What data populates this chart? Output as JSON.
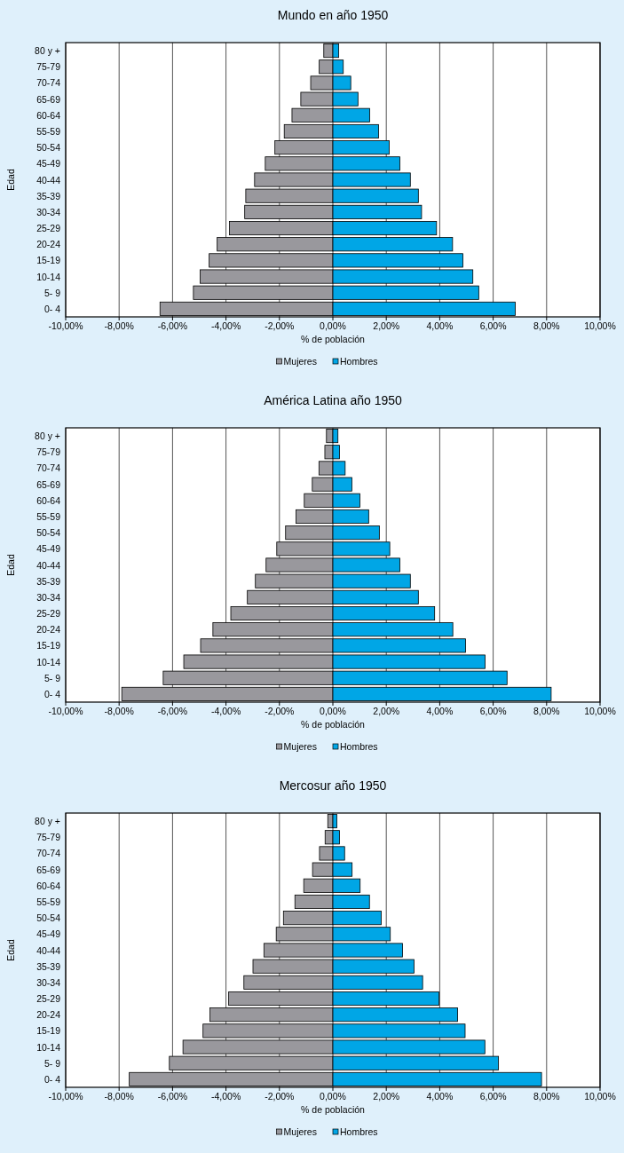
{
  "chart_data": [
    {
      "type": "bar",
      "title": "Mundo en año 1950",
      "xlabel": "% de población",
      "ylabel": "Edad",
      "orientation": "horizontal",
      "stacked": true,
      "grid": "x",
      "legend": "bottom",
      "categories": [
        "80 y +",
        "75-79",
        "70-74",
        "65-69",
        "60-64",
        "55-59",
        "50-54",
        "45-49",
        "40-44",
        "35-39",
        "30-34",
        "25-29",
        "20-24",
        "15-19",
        "10-14",
        "5- 9",
        "0- 4"
      ],
      "xlim": [
        -10,
        10
      ],
      "xticks": [
        {
          "value": -10,
          "label": "-10,00%"
        },
        {
          "value": -8,
          "label": "-8,00%"
        },
        {
          "value": -6,
          "label": "-6,00%"
        },
        {
          "value": -4,
          "label": "-4,00%"
        },
        {
          "value": -2,
          "label": "-2,00%"
        },
        {
          "value": 0,
          "label": "0,00%"
        },
        {
          "value": 2,
          "label": "2,00%"
        },
        {
          "value": 4,
          "label": "4,00%"
        },
        {
          "value": 6,
          "label": "6,00%"
        },
        {
          "value": 8,
          "label": "8,00%"
        },
        {
          "value": 10,
          "label": "10,00%"
        }
      ],
      "series": [
        {
          "name": "Mujeres",
          "color": "#99989d",
          "values": [
            -0.34,
            -0.51,
            -0.83,
            -1.2,
            -1.53,
            -1.82,
            -2.17,
            -2.53,
            -2.93,
            -3.26,
            -3.3,
            -3.87,
            -4.33,
            -4.63,
            -4.97,
            -5.22,
            -6.47
          ]
        },
        {
          "name": "Hombres",
          "color": "#00a6e6",
          "values": [
            0.22,
            0.39,
            0.67,
            0.94,
            1.38,
            1.71,
            2.11,
            2.51,
            2.9,
            3.2,
            3.32,
            3.88,
            4.48,
            4.87,
            5.24,
            5.46,
            6.83
          ]
        }
      ]
    },
    {
      "type": "bar",
      "title": "América Latina año 1950",
      "xlabel": "% de población",
      "ylabel": "Edad",
      "orientation": "horizontal",
      "stacked": true,
      "grid": "x",
      "legend": "bottom",
      "categories": [
        "80 y +",
        "75-79",
        "70-74",
        "65-69",
        "60-64",
        "55-59",
        "50-54",
        "45-49",
        "40-44",
        "35-39",
        "30-34",
        "25-29",
        "20-24",
        "15-19",
        "10-14",
        "5- 9",
        "0- 4"
      ],
      "xlim": [
        -10,
        10
      ],
      "xticks": [
        {
          "value": -10,
          "label": "-10,00%"
        },
        {
          "value": -8,
          "label": "-8,00%"
        },
        {
          "value": -6,
          "label": "-6,00%"
        },
        {
          "value": -4,
          "label": "-4,00%"
        },
        {
          "value": -2,
          "label": "-2,00%"
        },
        {
          "value": 0,
          "label": "0,00%"
        },
        {
          "value": 2,
          "label": "2,00%"
        },
        {
          "value": 4,
          "label": "4,00%"
        },
        {
          "value": 6,
          "label": "6,00%"
        },
        {
          "value": 8,
          "label": "8,00%"
        },
        {
          "value": 10,
          "label": "10,00%"
        }
      ],
      "series": [
        {
          "name": "Mujeres",
          "color": "#99989d",
          "values": [
            -0.24,
            -0.3,
            -0.52,
            -0.77,
            -1.07,
            -1.38,
            -1.77,
            -2.1,
            -2.5,
            -2.9,
            -3.2,
            -3.82,
            -4.49,
            -4.95,
            -5.58,
            -6.35,
            -7.9
          ]
        },
        {
          "name": "Hombres",
          "color": "#00a6e6",
          "values": [
            0.19,
            0.25,
            0.46,
            0.71,
            1.01,
            1.34,
            1.74,
            2.13,
            2.51,
            2.9,
            3.2,
            3.81,
            4.49,
            4.97,
            5.7,
            6.52,
            8.17
          ]
        }
      ]
    },
    {
      "type": "bar",
      "title": "Mercosur año 1950",
      "xlabel": "% de población",
      "ylabel": "Edad",
      "orientation": "horizontal",
      "stacked": true,
      "grid": "x",
      "legend": "bottom",
      "categories": [
        "80 y +",
        "75-79",
        "70-74",
        "65-69",
        "60-64",
        "55-59",
        "50-54",
        "45-49",
        "40-44",
        "35-39",
        "30-34",
        "25-29",
        "20-24",
        "15-19",
        "10-14",
        "5- 9",
        "0- 4"
      ],
      "xlim": [
        -10,
        10
      ],
      "xticks": [
        {
          "value": -10,
          "label": "-10,00%"
        },
        {
          "value": -8,
          "label": "-8,00%"
        },
        {
          "value": -6,
          "label": "-6,00%"
        },
        {
          "value": -4,
          "label": "-4,00%"
        },
        {
          "value": -2,
          "label": "-2,00%"
        },
        {
          "value": 0,
          "label": "0,00%"
        },
        {
          "value": 2,
          "label": "2,00%"
        },
        {
          "value": 4,
          "label": "4,00%"
        },
        {
          "value": 6,
          "label": "6,00%"
        },
        {
          "value": 8,
          "label": "8,00%"
        },
        {
          "value": 10,
          "label": "10,00%"
        }
      ],
      "series": [
        {
          "name": "Mujeres",
          "color": "#99989d",
          "values": [
            -0.19,
            -0.29,
            -0.5,
            -0.76,
            -1.09,
            -1.42,
            -1.85,
            -2.12,
            -2.58,
            -2.99,
            -3.33,
            -3.9,
            -4.6,
            -4.86,
            -5.61,
            -6.12,
            -7.62
          ]
        },
        {
          "name": "Hombres",
          "color": "#00a6e6",
          "values": [
            0.15,
            0.25,
            0.44,
            0.72,
            1.02,
            1.37,
            1.81,
            2.15,
            2.61,
            3.04,
            3.36,
            3.97,
            4.67,
            4.95,
            5.69,
            6.2,
            7.81
          ]
        }
      ]
    }
  ]
}
